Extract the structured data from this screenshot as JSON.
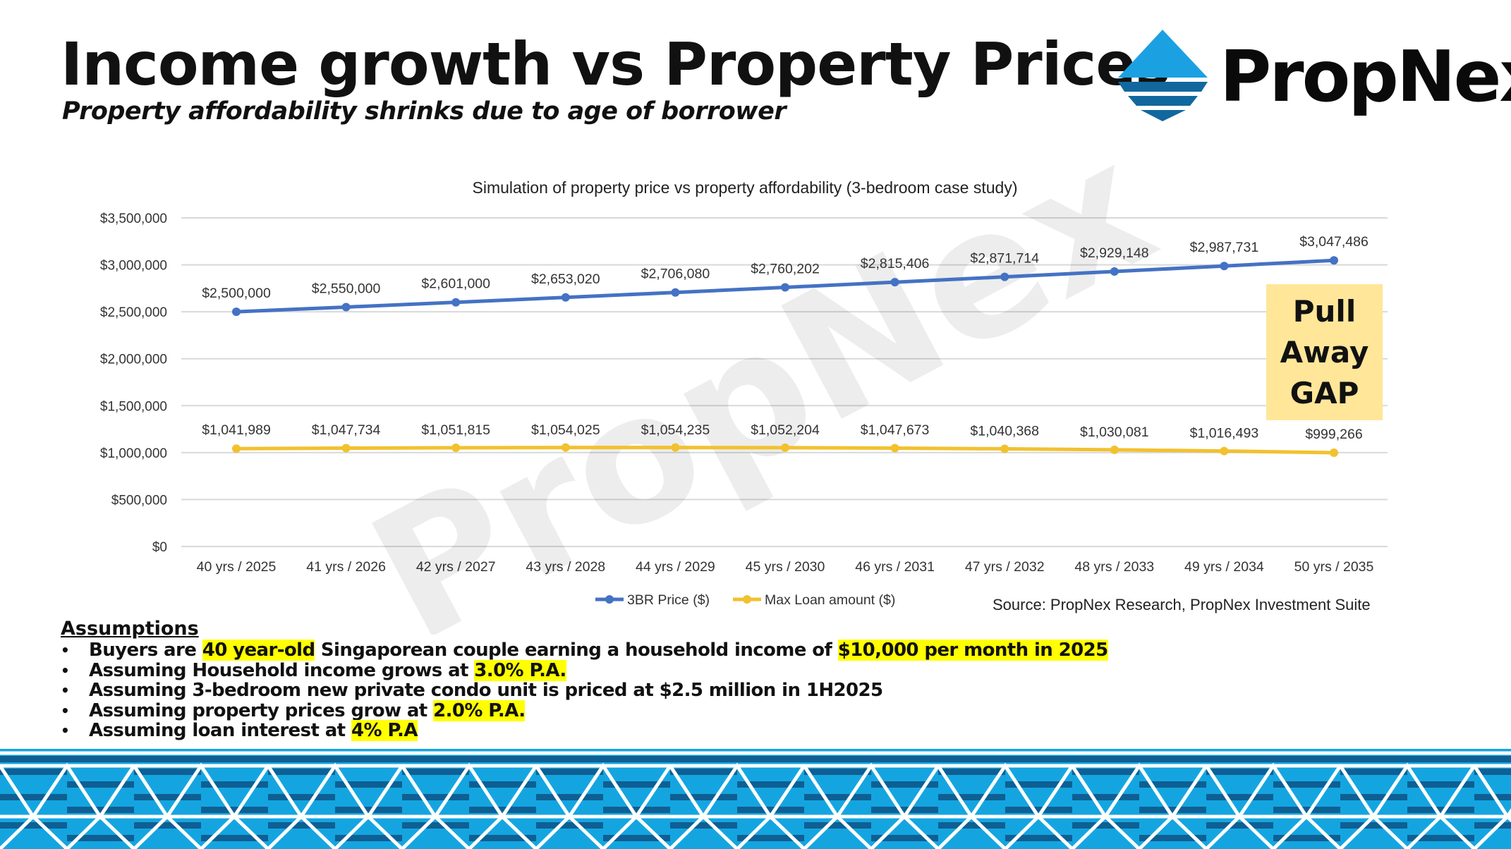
{
  "header": {
    "title": "Income growth vs Property Prices",
    "subtitle": "Property affordability shrinks due to age of borrower",
    "logo_text": "PropNex"
  },
  "watermark": "PropNex",
  "callout": {
    "lines": [
      "Pull",
      "Away",
      "GAP"
    ],
    "color": "#FFE699"
  },
  "source": "Source: PropNex Research, PropNex Investment Suite",
  "assumptions": {
    "heading": "Assumptions",
    "items": [
      [
        {
          "t": "Buyers are "
        },
        {
          "t": "40 year-old",
          "hl": true
        },
        {
          "t": " Singaporean couple earning a household income of "
        },
        {
          "t": "$10,000 per month in 2025",
          "hl": true
        }
      ],
      [
        {
          "t": "Assuming Household income grows at "
        },
        {
          "t": "3.0% P.A.",
          "hl": true
        }
      ],
      [
        {
          "t": "Assuming 3-bedroom new private condo unit is priced at $2.5 million in 1H2025"
        }
      ],
      [
        {
          "t": "Assuming property prices grow at "
        },
        {
          "t": "2.0% P.A.",
          "hl": true
        }
      ],
      [
        {
          "t": "Assuming loan interest at "
        },
        {
          "t": "4% P.A",
          "hl": true
        }
      ]
    ]
  },
  "chart_data": {
    "type": "line",
    "title": "Simulation of property price vs property affordability (3-bedroom case study)",
    "xlabel": "",
    "ylabel": "",
    "ylim": [
      0,
      3500000
    ],
    "yticks": [
      0,
      500000,
      1000000,
      1500000,
      2000000,
      2500000,
      3000000,
      3500000
    ],
    "ytick_labels": [
      "$0",
      "$500,000",
      "$1,000,000",
      "$1,500,000",
      "$2,000,000",
      "$2,500,000",
      "$3,000,000",
      "$3,500,000"
    ],
    "grid": true,
    "legend": "bottom",
    "categories": [
      "40 yrs / 2025",
      "41 yrs / 2026",
      "42 yrs / 2027",
      "43 yrs / 2028",
      "44 yrs / 2029",
      "45 yrs / 2030",
      "46 yrs / 2031",
      "47 yrs / 2032",
      "48 yrs / 2033",
      "49 yrs / 2034",
      "50 yrs / 2035"
    ],
    "series": [
      {
        "name": "3BR Price ($)",
        "color": "#4472C4",
        "values": [
          2500000,
          2550000,
          2601000,
          2653020,
          2706080,
          2760202,
          2815406,
          2871714,
          2929148,
          2987731,
          3047486
        ],
        "labels": [
          "$2,500,000",
          "$2,550,000",
          "$2,601,000",
          "$2,653,020",
          "$2,706,080",
          "$2,760,202",
          "$2,815,406",
          "$2,871,714",
          "$2,929,148",
          "$2,987,731",
          "$3,047,486"
        ]
      },
      {
        "name": "Max Loan amount ($)",
        "color": "#F2C12E",
        "values": [
          1041989,
          1047734,
          1051815,
          1054025,
          1054235,
          1052204,
          1047673,
          1040368,
          1030081,
          1016493,
          999266
        ],
        "labels": [
          "$1,041,989",
          "$1,047,734",
          "$1,051,815",
          "$1,054,025",
          "$1,054,235",
          "$1,052,204",
          "$1,047,673",
          "$1,040,368",
          "$1,030,081",
          "$1,016,493",
          "$999,266"
        ]
      }
    ]
  }
}
